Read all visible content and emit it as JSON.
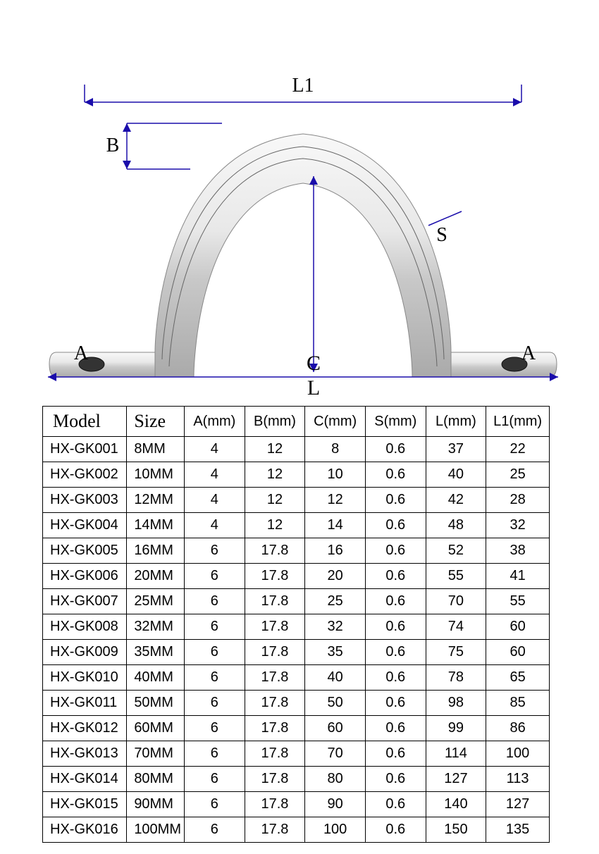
{
  "diagram": {
    "labels": {
      "L1": "L1",
      "B": "B",
      "S": "S",
      "A_left": "A",
      "A_right": "A",
      "C": "C",
      "L": "L"
    },
    "colors": {
      "dim_line": "#1a0dab",
      "metal_light": "#f5f5f5",
      "metal_mid": "#cccccc",
      "metal_dark": "#999999",
      "hole": "#333333"
    }
  },
  "table": {
    "columns": [
      "Model",
      "Size",
      "A(mm)",
      "B(mm)",
      "C(mm)",
      "S(mm)",
      "L(mm)",
      "L1(mm)"
    ],
    "rows": [
      [
        "HX-GK001",
        "8MM",
        "4",
        "12",
        "8",
        "0.6",
        "37",
        "22"
      ],
      [
        "HX-GK002",
        "10MM",
        "4",
        "12",
        "10",
        "0.6",
        "40",
        "25"
      ],
      [
        "HX-GK003",
        "12MM",
        "4",
        "12",
        "12",
        "0.6",
        "42",
        "28"
      ],
      [
        "HX-GK004",
        "14MM",
        "4",
        "12",
        "14",
        "0.6",
        "48",
        "32"
      ],
      [
        "HX-GK005",
        "16MM",
        "6",
        "17.8",
        "16",
        "0.6",
        "52",
        "38"
      ],
      [
        "HX-GK006",
        "20MM",
        "6",
        "17.8",
        "20",
        "0.6",
        "55",
        "41"
      ],
      [
        "HX-GK007",
        "25MM",
        "6",
        "17.8",
        "25",
        "0.6",
        "70",
        "55"
      ],
      [
        "HX-GK008",
        "32MM",
        "6",
        "17.8",
        "32",
        "0.6",
        "74",
        "60"
      ],
      [
        "HX-GK009",
        "35MM",
        "6",
        "17.8",
        "35",
        "0.6",
        "75",
        "60"
      ],
      [
        "HX-GK010",
        "40MM",
        "6",
        "17.8",
        "40",
        "0.6",
        "78",
        "65"
      ],
      [
        "HX-GK011",
        "50MM",
        "6",
        "17.8",
        "50",
        "0.6",
        "98",
        "85"
      ],
      [
        "HX-GK012",
        "60MM",
        "6",
        "17.8",
        "60",
        "0.6",
        "99",
        "86"
      ],
      [
        "HX-GK013",
        "70MM",
        "6",
        "17.8",
        "70",
        "0.6",
        "114",
        "100"
      ],
      [
        "HX-GK014",
        "80MM",
        "6",
        "17.8",
        "80",
        "0.6",
        "127",
        "113"
      ],
      [
        "HX-GK015",
        "90MM",
        "6",
        "17.8",
        "90",
        "0.6",
        "140",
        "127"
      ],
      [
        "HX-GK016",
        "100MM",
        "6",
        "17.8",
        "100",
        "0.6",
        "150",
        "135"
      ]
    ]
  }
}
